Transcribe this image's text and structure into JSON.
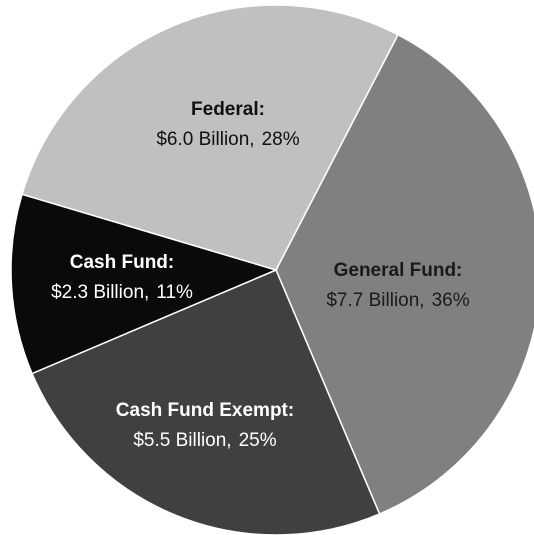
{
  "chart_data": {
    "type": "pie",
    "categories": [
      "General Fund:",
      "Cash Fund Exempt:",
      "Cash Fund:",
      "Federal:"
    ],
    "values": [
      36,
      25,
      11,
      28
    ],
    "value_labels": [
      "36%",
      "25%",
      "11%",
      "28%"
    ],
    "amount_labels": [
      "$7.7 Billion,",
      "$5.5 Billion,",
      "$2.3 Billion,",
      "$6.0 Billion,"
    ],
    "colors": [
      "#808080",
      "#404040",
      "#0a0a0a",
      "#c0c0c0"
    ]
  }
}
